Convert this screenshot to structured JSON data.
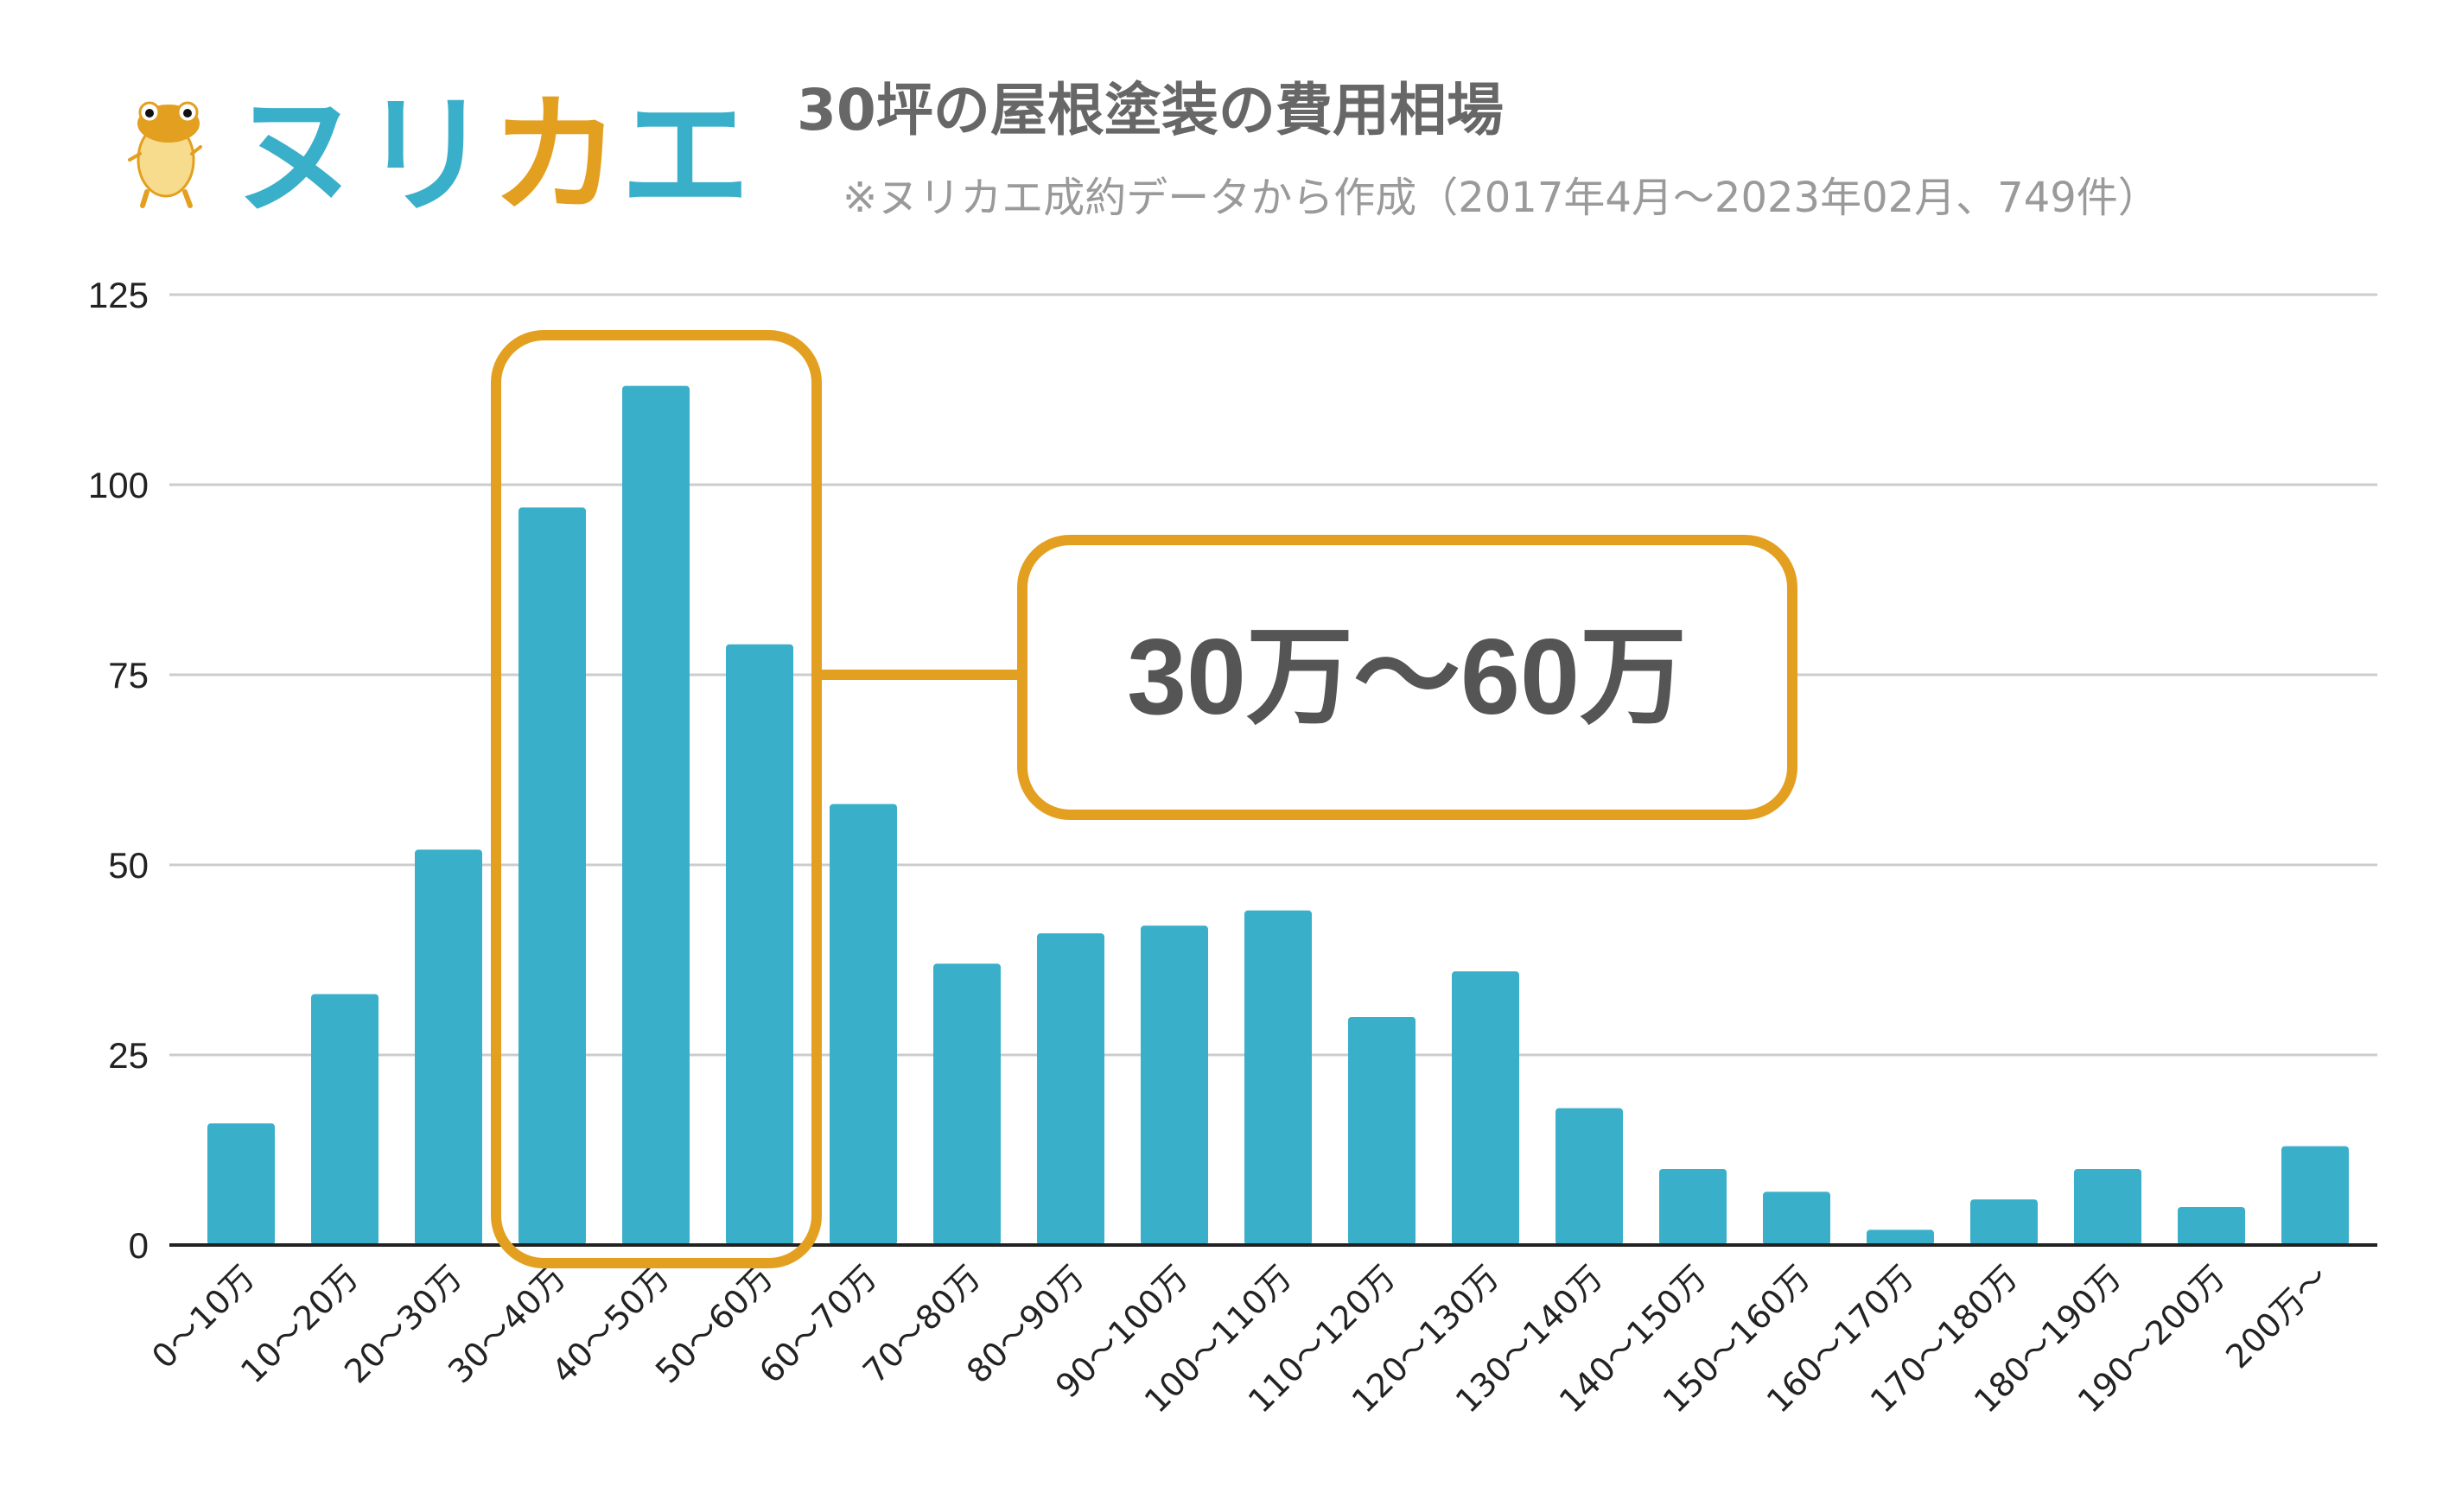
{
  "logo": {
    "text": "ヌリカエ",
    "chars": [
      "ヌ",
      "リ",
      "カ",
      "エ"
    ],
    "colors": [
      "#3AAFC9",
      "#3AAFC9",
      "#E3A020",
      "#3AAFC9"
    ]
  },
  "colors": {
    "bar": "#3AAFC9",
    "highlight": "#E3A020",
    "grid": "#cccccc",
    "axis": "#222222"
  },
  "chart_data": {
    "type": "bar",
    "title": "30坪の屋根塗装の費用相場",
    "subtitle": "※ヌリカエ成約データから作成（2017年4月～2023年02月、749件）",
    "xlabel": "",
    "ylabel": "",
    "ylim": [
      0,
      125
    ],
    "yticks": [
      0,
      25,
      50,
      75,
      100,
      125
    ],
    "grid": true,
    "categories": [
      "0～10万",
      "10～20万",
      "20～30万",
      "30～40万",
      "40～50万",
      "50～60万",
      "60～70万",
      "70～80万",
      "80～90万",
      "90～100万",
      "100～110万",
      "110～120万",
      "120～130万",
      "130～140万",
      "140～150万",
      "150～160万",
      "160～170万",
      "170～180万",
      "180～190万",
      "190～200万",
      "200万～"
    ],
    "values": [
      16,
      33,
      52,
      97,
      113,
      79,
      58,
      37,
      41,
      42,
      44,
      30,
      36,
      18,
      10,
      7,
      2,
      6,
      10,
      5,
      13
    ],
    "annotation": {
      "text": "30万～60万",
      "highlight_categories": [
        "30～40万",
        "40～50万",
        "50～60万"
      ]
    }
  }
}
